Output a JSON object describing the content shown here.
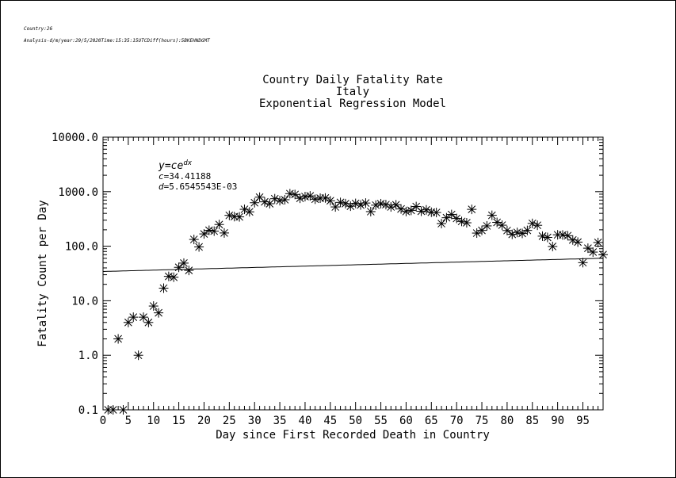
{
  "header": {
    "meta_line_1": "Country:26",
    "meta_line_2": "Analysis-d/m/year:29/5/2020Time:15:35:15UTCDiff(hours):5BKEHNDGMT"
  },
  "chart_data": {
    "type": "scatter",
    "title": "Country Daily Fatality Rate",
    "subtitle": "Italy",
    "model_title": "Exponential Regression Model",
    "xlabel": "Day since First Recorded Death in Country",
    "ylabel": "Fatality Count per Day",
    "x_scale": "linear",
    "y_scale": "log",
    "xlim": [
      0,
      99
    ],
    "ylim": [
      0.1,
      10000
    ],
    "x_ticks": [
      0,
      5,
      10,
      15,
      20,
      25,
      30,
      35,
      40,
      45,
      50,
      55,
      60,
      65,
      70,
      75,
      80,
      85,
      90,
      95
    ],
    "y_ticks": [
      0.1,
      1,
      10,
      100,
      1000,
      10000
    ],
    "y_tick_labels": [
      "0.1",
      "1.0",
      "10.0",
      "100.0",
      "1000.0",
      "10000.0"
    ],
    "grid": false,
    "annotation": {
      "equation": "y=ce",
      "equation_exponent": "dx",
      "c_label": "c",
      "c_value": "=34.41188",
      "d_label": "d",
      "d_value": "=5.6545543E-03"
    },
    "regression": {
      "c": 34.41188,
      "d": 0.0056545543
    },
    "series": [
      {
        "marker": "asterisk",
        "x": [
          1,
          2,
          3,
          4,
          5,
          6,
          7,
          8,
          9,
          10,
          11,
          12,
          13,
          14,
          15,
          16,
          17,
          18,
          19,
          20,
          21,
          22,
          23,
          24,
          25,
          26,
          27,
          28,
          29,
          30,
          31,
          32,
          33,
          34,
          35,
          36,
          37,
          38,
          39,
          40,
          41,
          42,
          43,
          44,
          45,
          46,
          47,
          48,
          49,
          50,
          51,
          52,
          53,
          54,
          55,
          56,
          57,
          58,
          59,
          60,
          61,
          62,
          63,
          64,
          65,
          66,
          67,
          68,
          69,
          70,
          71,
          72,
          73,
          74,
          75,
          76,
          77,
          78,
          79,
          80,
          81,
          82,
          83,
          84,
          85,
          86,
          87,
          88,
          89,
          90,
          91,
          92,
          93,
          94,
          95,
          96,
          97,
          98,
          99
        ],
        "y": [
          0.1,
          0.1,
          2,
          0.1,
          4,
          5,
          1,
          5,
          4,
          8,
          6,
          17,
          28,
          27,
          41,
          49,
          36,
          133,
          97,
          168,
          196,
          189,
          250,
          175,
          368,
          349,
          345,
          475,
          427,
          627,
          793,
          651,
          601,
          743,
          683,
          712,
          919,
          889,
          756,
          812,
          837,
          727,
          760,
          766,
          681,
          525,
          636,
          604,
          542,
          610,
          570,
          619,
          431,
          566,
          602,
          578,
          525,
          575,
          482,
          433,
          454,
          534,
          437,
          464,
          420,
          415,
          260,
          333,
          382,
          323,
          285,
          269,
          474,
          174,
          195,
          236,
          369,
          274,
          243,
          194,
          165,
          179,
          172,
          195,
          262,
          242,
          153,
          145,
          99,
          162,
          161,
          156,
          130,
          119,
          50,
          92,
          78,
          117,
          70
        ]
      }
    ]
  }
}
